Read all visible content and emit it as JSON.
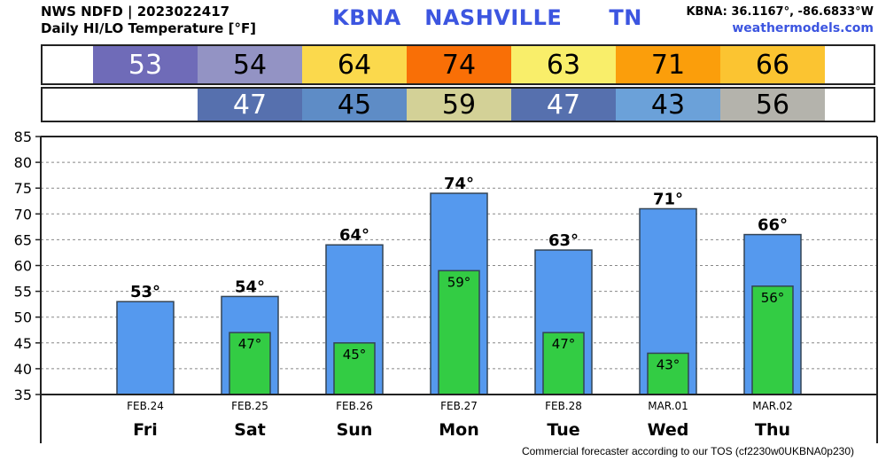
{
  "header": {
    "source_line": "NWS NDFD | 2023022417",
    "subtitle": "Daily HI/LO Temperature [°F]",
    "station_title": "KBNA   NASHVILLE      TN",
    "coords": "KBNA: 36.1167°, -86.6833°W",
    "site": "weathermodels.com"
  },
  "footer": {
    "text": "Commercial forecaster according to our TOS (cf2230w0UKBNA0p230)"
  },
  "colors": {
    "hi_bar": "#5599ee",
    "lo_bar": "#33cc44",
    "bar_outline": "#334455",
    "hi_cells": [
      "#6f6bb8",
      "#9393c4",
      "#fbd94c",
      "#f96f06",
      "#f9ee6a",
      "#fb9e0b",
      "#fbc431"
    ],
    "lo_cells": [
      "",
      "#5670ae",
      "#5e8cc6",
      "#d3d197",
      "#5670ae",
      "#6ba1d9",
      "#b4b3ac"
    ],
    "hi_text": [
      "#ffffff",
      "#000000",
      "#000000",
      "#000000",
      "#000000",
      "#000000",
      "#000000"
    ],
    "lo_text": [
      "",
      "#ffffff",
      "#000000",
      "#000000",
      "#ffffff",
      "#000000",
      "#000000"
    ]
  },
  "chart_data": {
    "type": "bar",
    "title": "Daily HI/LO Temperature [°F]",
    "ylim": [
      35,
      85
    ],
    "yticks": [
      35,
      40,
      45,
      50,
      55,
      60,
      65,
      70,
      75,
      80,
      85
    ],
    "grid": true,
    "categories": [
      "FEB.24",
      "FEB.25",
      "FEB.26",
      "FEB.27",
      "FEB.28",
      "MAR.01",
      "MAR.02"
    ],
    "days": [
      "Fri",
      "Sat",
      "Sun",
      "Mon",
      "Tue",
      "Wed",
      "Thu"
    ],
    "series": [
      {
        "name": "HI",
        "values": [
          53,
          54,
          64,
          74,
          63,
          71,
          66
        ],
        "labels": [
          "53°",
          "54°",
          "64°",
          "74°",
          "63°",
          "71°",
          "66°"
        ]
      },
      {
        "name": "LO",
        "values": [
          null,
          47,
          45,
          59,
          47,
          43,
          56
        ],
        "labels": [
          "",
          "47°",
          "45°",
          "59°",
          "47°",
          "43°",
          "56°"
        ]
      }
    ],
    "hi_row_text": [
      "53",
      "54",
      "64",
      "74",
      "63",
      "71",
      "66"
    ],
    "lo_row_text": [
      "",
      "47",
      "45",
      "59",
      "47",
      "43",
      "56"
    ]
  }
}
